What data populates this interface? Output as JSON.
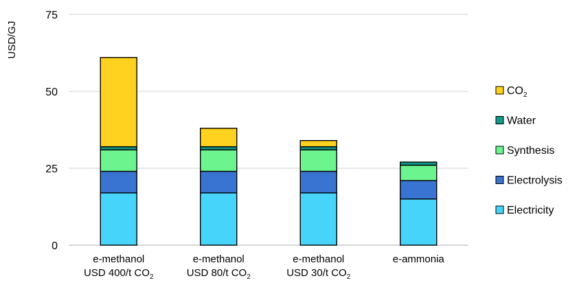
{
  "chart_data": {
    "type": "bar",
    "stacked": true,
    "ylabel": "USD/GJ",
    "ylim": [
      0,
      75
    ],
    "yticks": [
      "0",
      "25",
      "50",
      "75"
    ],
    "grid": true,
    "legend_position": "right",
    "categories": [
      {
        "line1": "e-methanol",
        "line2": "USD 400/t CO",
        "sub": "2"
      },
      {
        "line1": "e-methanol",
        "line2": "USD 80/t CO",
        "sub": "2"
      },
      {
        "line1": "e-methanol",
        "line2": "USD 30/t CO",
        "sub": "2"
      },
      {
        "line1": "e-ammonia",
        "line2": "",
        "sub": ""
      }
    ],
    "series": [
      {
        "name": "Electricity",
        "sub": "",
        "color": "#47d4fb",
        "values": [
          17,
          17,
          17,
          15
        ]
      },
      {
        "name": "Electrolysis",
        "sub": "",
        "color": "#3a74d3",
        "values": [
          7,
          7,
          7,
          6
        ]
      },
      {
        "name": "Synthesis",
        "sub": "",
        "color": "#6cf58f",
        "values": [
          7,
          7,
          7,
          5
        ]
      },
      {
        "name": "Water",
        "sub": "",
        "color": "#0f9a8a",
        "values": [
          1,
          1,
          1,
          1
        ]
      },
      {
        "name": "CO",
        "sub": "2",
        "color": "#ffd21f",
        "values": [
          29,
          6,
          2,
          0
        ]
      }
    ]
  }
}
